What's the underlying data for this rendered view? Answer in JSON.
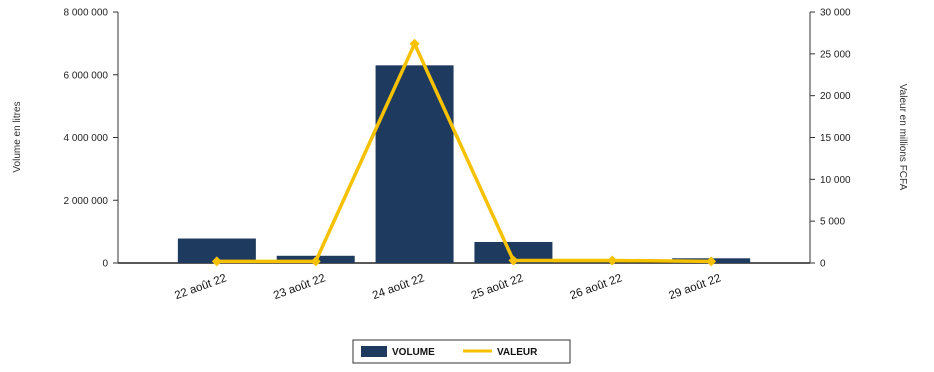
{
  "chart_data": {
    "type": "bar",
    "categories": [
      "22 août 22",
      "23 août 22",
      "24 août 22",
      "25 août 22",
      "26 août 22",
      "29 août 22"
    ],
    "series": [
      {
        "name": "VOLUME",
        "type": "bar",
        "axis": "left",
        "color": "#1e3a5f",
        "values": [
          780000,
          230000,
          6300000,
          670000,
          0,
          150000
        ]
      },
      {
        "name": "VALEUR",
        "type": "line",
        "axis": "right",
        "color": "#f5c100",
        "values": [
          200,
          200,
          26200,
          300,
          300,
          200
        ]
      }
    ],
    "y_left": {
      "label": "Volume en litres",
      "ylim": [
        0,
        8000000
      ],
      "ticks": [
        0,
        2000000,
        4000000,
        6000000,
        8000000
      ],
      "tick_labels": [
        "0",
        "2 000 000",
        "4 000 000",
        "6 000 000",
        "8 000 000"
      ]
    },
    "y_right": {
      "label": "Valeur en millions FCFA",
      "ylim": [
        0,
        30000
      ],
      "ticks": [
        0,
        5000,
        10000,
        15000,
        20000,
        25000,
        30000
      ],
      "tick_labels": [
        "0",
        "5 000",
        "10 000",
        "15 000",
        "20 000",
        "25 000",
        "30 000"
      ]
    },
    "legend": {
      "position": "bottom",
      "items": [
        "VOLUME",
        "VALEUR"
      ]
    },
    "grid": false
  }
}
